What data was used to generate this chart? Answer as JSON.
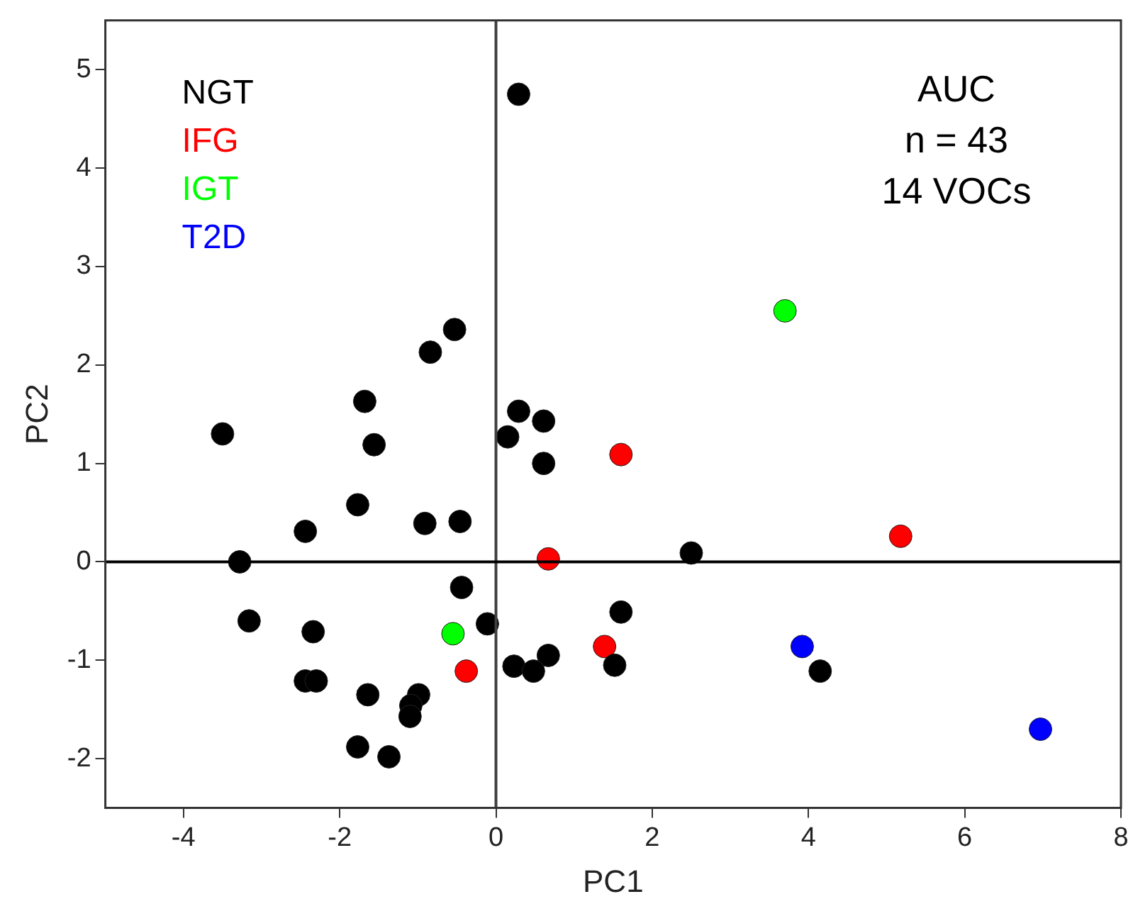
{
  "chart_data": {
    "type": "scatter",
    "xlabel": "PC1",
    "ylabel": "PC2",
    "xlim": [
      -5,
      8
    ],
    "ylim": [
      -2.5,
      5.5
    ],
    "xticks": [
      -4,
      -2,
      0,
      2,
      4,
      6,
      8
    ],
    "yticks": [
      -2,
      -1,
      0,
      1,
      2,
      3,
      4,
      5
    ],
    "grid": false,
    "legend": "top left",
    "marker": "circle",
    "annotations": [
      "AUC",
      "n = 43",
      "14 VOCs"
    ],
    "ref_lines": [
      {
        "axis": "x",
        "value": 0,
        "color": "#404040"
      },
      {
        "axis": "y",
        "value": 0,
        "color": "#000000"
      }
    ],
    "series": [
      {
        "name": "NGT",
        "color": "#000000",
        "x": [
          0.29,
          -0.53,
          -0.84,
          -1.68,
          -1.56,
          -3.5,
          0.29,
          0.61,
          0.15,
          0.61,
          -1.77,
          -2.44,
          -0.91,
          -0.46,
          -3.28,
          2.5,
          -0.44,
          -0.11,
          -3.16,
          -2.34,
          1.6,
          0.67,
          0.23,
          0.48,
          1.52,
          4.15,
          -2.44,
          -2.3,
          -1.64,
          -0.99,
          -1.09,
          -1.1,
          -1.77,
          -1.37
        ],
        "values": [
          4.75,
          2.36,
          2.13,
          1.63,
          1.19,
          1.3,
          1.53,
          1.43,
          1.27,
          1.0,
          0.58,
          0.31,
          0.39,
          0.41,
          0.0,
          0.09,
          -0.26,
          -0.63,
          -0.6,
          -0.71,
          -0.51,
          -0.95,
          -1.06,
          -1.11,
          -1.05,
          -1.11,
          -1.21,
          -1.21,
          -1.35,
          -1.35,
          -1.46,
          -1.57,
          -1.88,
          -1.98
        ]
      },
      {
        "name": "IFG",
        "color": "#ff0000",
        "x": [
          1.6,
          5.18,
          0.67,
          1.39,
          -0.38
        ],
        "values": [
          1.09,
          0.26,
          0.03,
          -0.86,
          -1.11
        ]
      },
      {
        "name": "IGT",
        "color": "#00ff00",
        "x": [
          3.7,
          -0.55
        ],
        "values": [
          2.55,
          -0.73
        ]
      },
      {
        "name": "T2D",
        "color": "#0000ff",
        "x": [
          3.92,
          6.97
        ],
        "values": [
          -0.86,
          -1.7
        ]
      }
    ]
  }
}
